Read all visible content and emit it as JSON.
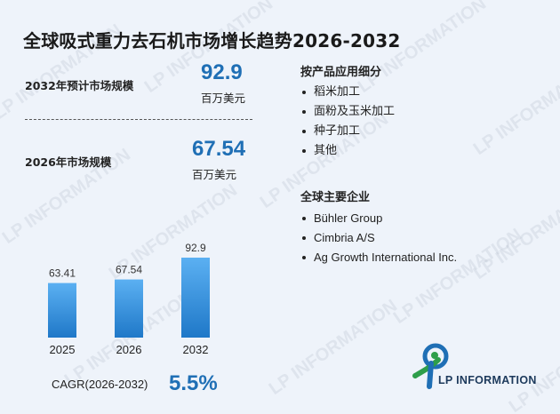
{
  "title": "全球吸式重力去石机市场增长趋势2026-2032",
  "stats": [
    {
      "label": "2032年预计市场规模",
      "value": "92.9",
      "unit": "百万美元"
    },
    {
      "label": "2026年市场规模",
      "value": "67.54",
      "unit": "百万美元"
    }
  ],
  "cagr": {
    "label": "CAGR(2026-2032)",
    "value": "5.5%"
  },
  "segments": {
    "title": "按产品应用细分",
    "items": [
      "稻米加工",
      "面粉及玉米加工",
      "种子加工",
      "其他"
    ]
  },
  "companies": {
    "title": "全球主要企业",
    "items": [
      "Bühler Group",
      "Cimbria A/S",
      "Ag Growth International Inc."
    ]
  },
  "logo": {
    "text": "LP INFORMATION",
    "watermark": "LP INFORMATION"
  },
  "colors": {
    "accent": "#1f6fb5",
    "bar_top": "#5bb0f2",
    "bar_bottom": "#1f78c8"
  },
  "chart_data": {
    "type": "bar",
    "categories": [
      "2025",
      "2026",
      "2032"
    ],
    "values": [
      63.41,
      67.54,
      92.9
    ],
    "value_labels": [
      "63.41",
      "67.54",
      "92.9"
    ],
    "title": "",
    "xlabel": "",
    "ylabel": "",
    "grid": false
  }
}
